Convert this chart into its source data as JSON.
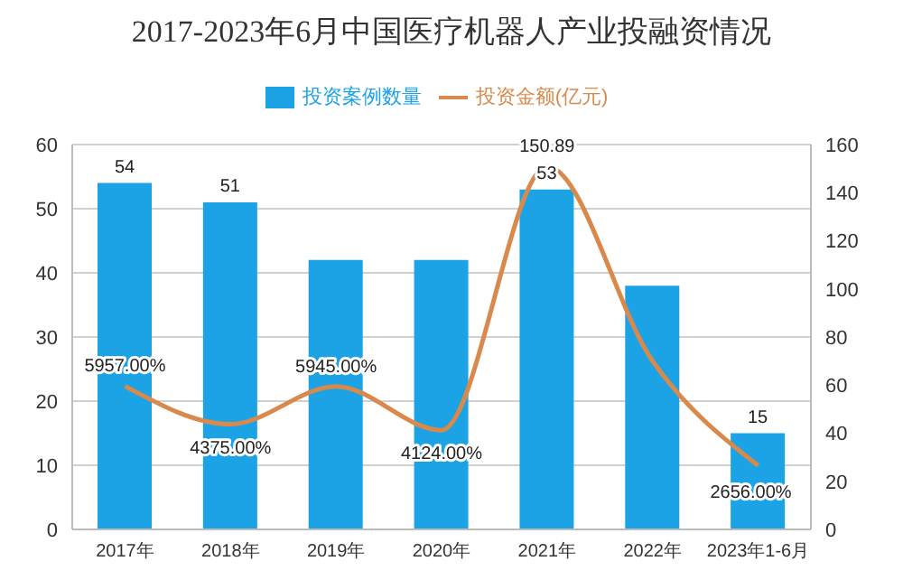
{
  "chart_data": {
    "type": "bar",
    "title": "2017-2023年6月中国医疗机器人产业投融资情况",
    "categories": [
      "2017年",
      "2018年",
      "2019年",
      "2020年",
      "2021年",
      "2022年",
      "2023年1-6月"
    ],
    "series": [
      {
        "name": "投资案例数量",
        "color": "#1ca3e6",
        "values": [
          54,
          51,
          42,
          42,
          53,
          38,
          15
        ],
        "value_labels": [
          "54",
          "51",
          null,
          null,
          "53",
          null,
          "15"
        ]
      },
      {
        "name": "投资金额(亿元)",
        "type": "line",
        "axis": "y2",
        "color": "#d9894b",
        "values": [
          59.57,
          43.75,
          59.45,
          41.24,
          150.89,
          70,
          26.56
        ],
        "value_labels": [
          "5957.00%",
          "4375.00%",
          "5945.00%",
          "4124.00%",
          "150.89",
          null,
          "2656.00%"
        ]
      }
    ],
    "ylim": [
      0,
      60
    ],
    "yticks": [
      0,
      10,
      20,
      30,
      40,
      50,
      60
    ],
    "y2lim": [
      0,
      160
    ],
    "y2ticks": [
      0,
      20,
      40,
      60,
      80,
      100,
      120,
      140,
      160
    ],
    "grid": "y",
    "legend": "top",
    "marker": "none",
    "line_style": "solid"
  }
}
